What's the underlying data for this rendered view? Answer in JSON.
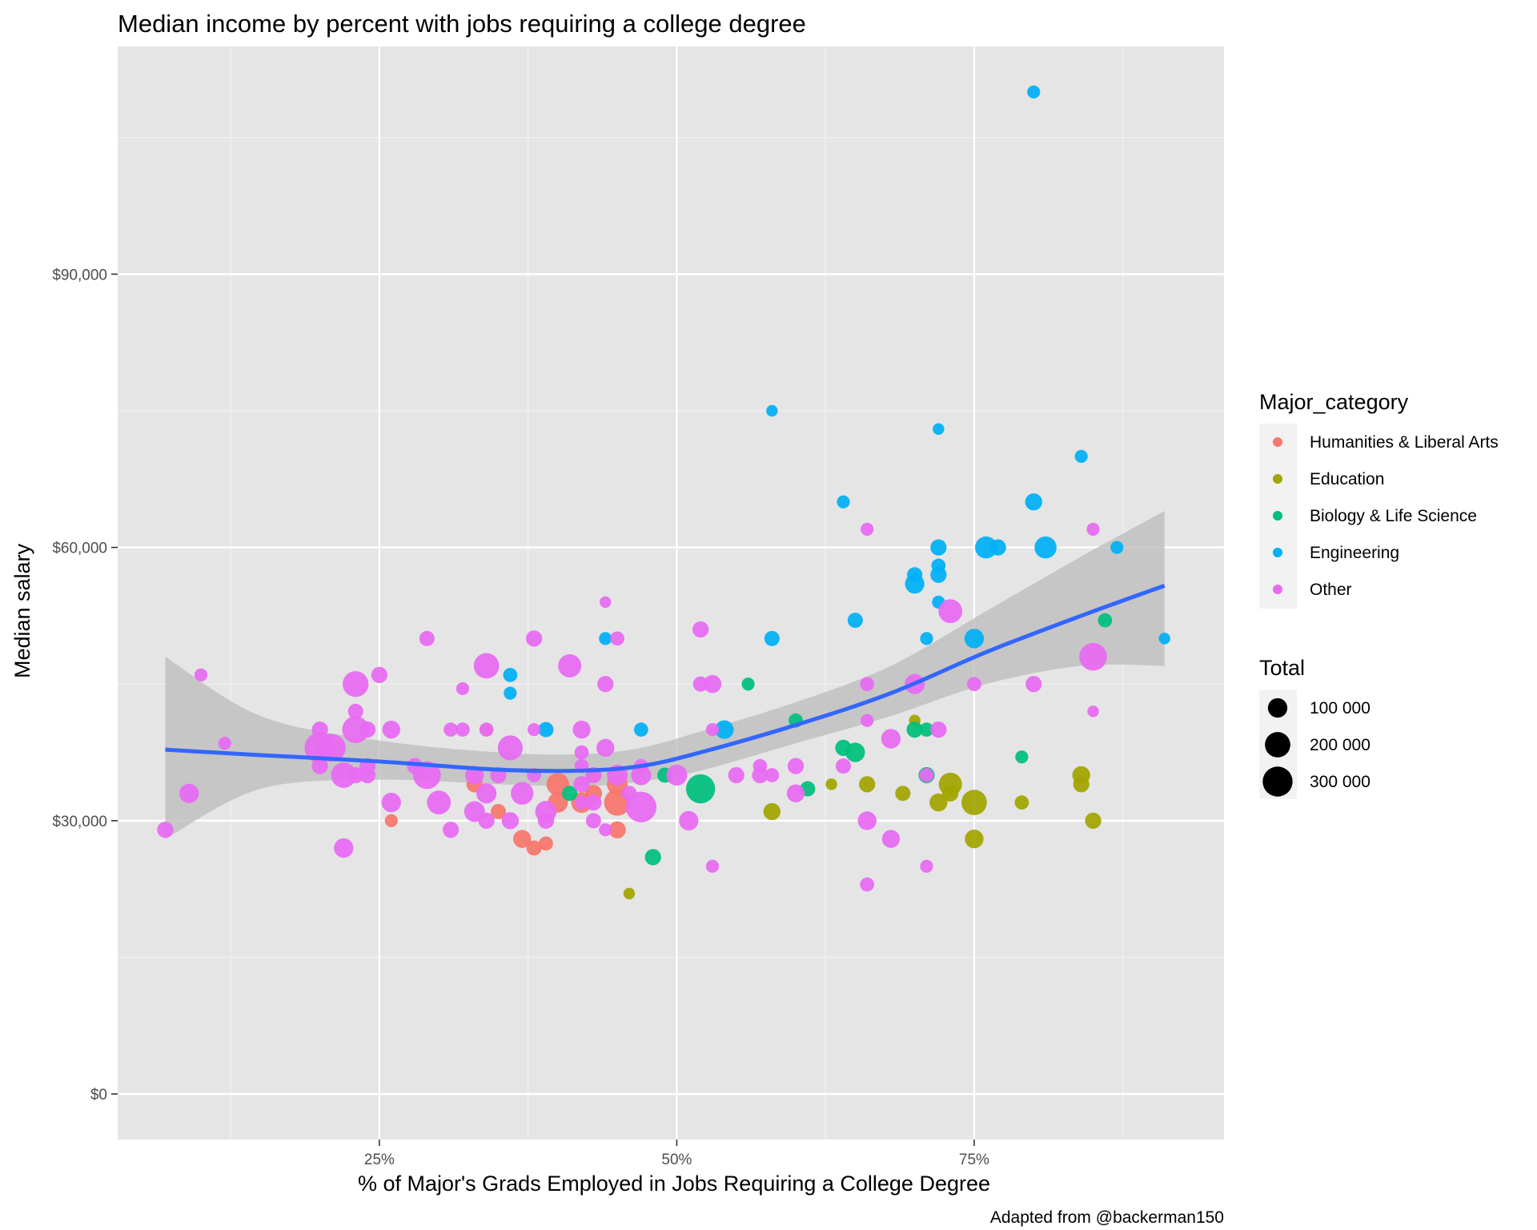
{
  "chart_data": {
    "type": "scatter",
    "title": "Median income by percent with jobs requiring a college degree",
    "xlabel": "% of Major's Grads Employed in Jobs Requiring a College Degree",
    "ylabel": "Median salary",
    "caption": "Adapted from @backerman150",
    "xlim": [
      0.03,
      0.96
    ],
    "ylim": [
      -5000,
      115000
    ],
    "x_ticks": [
      {
        "value": 0.25,
        "label": "25%"
      },
      {
        "value": 0.5,
        "label": "50%"
      },
      {
        "value": 0.75,
        "label": "75%"
      }
    ],
    "x_minor": [
      0.125,
      0.375,
      0.625,
      0.875
    ],
    "y_ticks": [
      {
        "value": 0,
        "label": "$0"
      },
      {
        "value": 30000,
        "label": "$30,000"
      },
      {
        "value": 60000,
        "label": "$60,000"
      },
      {
        "value": 90000,
        "label": "$90,000"
      }
    ],
    "y_minor": [
      15000,
      45000,
      75000,
      105000
    ],
    "grid": true,
    "legend_placement": "right",
    "colors": {
      "panel": "#E5E5E5",
      "gridline": "#FFFFFF",
      "smooth_line": "#3366FF",
      "ribbon": "#BEBEBE"
    },
    "color_legend": {
      "title": "Major_category",
      "entries": [
        {
          "label": "Humanities & Liberal Arts",
          "color": "#F8766D"
        },
        {
          "label": "Education",
          "color": "#A3A500"
        },
        {
          "label": "Biology & Life Science",
          "color": "#00BF7D"
        },
        {
          "label": "Engineering",
          "color": "#00B0F6"
        },
        {
          "label": "Other",
          "color": "#E76BF3"
        }
      ]
    },
    "size_legend": {
      "title": "Total",
      "entries": [
        {
          "label": "100 000",
          "value": 100000
        },
        {
          "label": "200 000",
          "value": 200000
        },
        {
          "label": "300 000",
          "value": 300000
        }
      ]
    },
    "smooth": {
      "x": [
        0.07,
        0.15,
        0.25,
        0.35,
        0.42,
        0.47,
        0.52,
        0.6,
        0.68,
        0.76,
        0.84,
        0.91
      ],
      "y": [
        37800,
        37200,
        36500,
        35600,
        35500,
        36000,
        37500,
        40500,
        44000,
        48500,
        52500,
        55800
      ],
      "ymin": [
        28000,
        33500,
        34500,
        34000,
        33800,
        34300,
        35500,
        38500,
        41500,
        45000,
        47000,
        47000
      ],
      "ymax": [
        48000,
        41500,
        38800,
        37500,
        37300,
        38000,
        39800,
        43000,
        47000,
        53000,
        59000,
        64000
      ]
    },
    "series": [
      {
        "name": "Humanities & Liberal Arts",
        "color": "#F8766D",
        "points": [
          {
            "x": 0.26,
            "y": 30000,
            "total": 30000
          },
          {
            "x": 0.33,
            "y": 34000,
            "total": 60000
          },
          {
            "x": 0.34,
            "y": 40000,
            "total": 30000
          },
          {
            "x": 0.35,
            "y": 31000,
            "total": 50000
          },
          {
            "x": 0.37,
            "y": 28000,
            "total": 80000
          },
          {
            "x": 0.38,
            "y": 27000,
            "total": 50000
          },
          {
            "x": 0.39,
            "y": 27500,
            "total": 40000
          },
          {
            "x": 0.4,
            "y": 34000,
            "total": 150000
          },
          {
            "x": 0.4,
            "y": 32000,
            "total": 110000
          },
          {
            "x": 0.42,
            "y": 32000,
            "total": 120000
          },
          {
            "x": 0.43,
            "y": 33000,
            "total": 70000
          },
          {
            "x": 0.45,
            "y": 32000,
            "total": 220000
          },
          {
            "x": 0.45,
            "y": 29000,
            "total": 70000
          },
          {
            "x": 0.45,
            "y": 34000,
            "total": 120000
          },
          {
            "x": 0.43,
            "y": 35000,
            "total": 50000
          }
        ]
      },
      {
        "name": "Education",
        "color": "#A3A500",
        "points": [
          {
            "x": 0.46,
            "y": 22000,
            "total": 20000
          },
          {
            "x": 0.58,
            "y": 31000,
            "total": 70000
          },
          {
            "x": 0.63,
            "y": 34000,
            "total": 20000
          },
          {
            "x": 0.66,
            "y": 34000,
            "total": 60000
          },
          {
            "x": 0.69,
            "y": 33000,
            "total": 50000
          },
          {
            "x": 0.7,
            "y": 41000,
            "total": 20000
          },
          {
            "x": 0.72,
            "y": 32000,
            "total": 80000
          },
          {
            "x": 0.73,
            "y": 34000,
            "total": 160000
          },
          {
            "x": 0.73,
            "y": 33000,
            "total": 60000
          },
          {
            "x": 0.75,
            "y": 32000,
            "total": 200000
          },
          {
            "x": 0.75,
            "y": 28000,
            "total": 90000
          },
          {
            "x": 0.79,
            "y": 32000,
            "total": 40000
          },
          {
            "x": 0.84,
            "y": 35000,
            "total": 80000
          },
          {
            "x": 0.84,
            "y": 34000,
            "total": 60000
          },
          {
            "x": 0.85,
            "y": 30000,
            "total": 60000
          }
        ]
      },
      {
        "name": "Biology & Life Science",
        "color": "#00BF7D",
        "points": [
          {
            "x": 0.41,
            "y": 33000,
            "total": 50000
          },
          {
            "x": 0.48,
            "y": 26000,
            "total": 60000
          },
          {
            "x": 0.49,
            "y": 35000,
            "total": 50000
          },
          {
            "x": 0.52,
            "y": 33500,
            "total": 280000
          },
          {
            "x": 0.56,
            "y": 45000,
            "total": 30000
          },
          {
            "x": 0.6,
            "y": 41000,
            "total": 40000
          },
          {
            "x": 0.61,
            "y": 33500,
            "total": 50000
          },
          {
            "x": 0.64,
            "y": 38000,
            "total": 60000
          },
          {
            "x": 0.65,
            "y": 37500,
            "total": 100000
          },
          {
            "x": 0.7,
            "y": 40000,
            "total": 60000
          },
          {
            "x": 0.71,
            "y": 35000,
            "total": 60000
          },
          {
            "x": 0.71,
            "y": 40000,
            "total": 40000
          },
          {
            "x": 0.79,
            "y": 37000,
            "total": 30000
          },
          {
            "x": 0.86,
            "y": 52000,
            "total": 40000
          }
        ]
      },
      {
        "name": "Engineering",
        "color": "#00B0F6",
        "points": [
          {
            "x": 0.36,
            "y": 46000,
            "total": 40000
          },
          {
            "x": 0.36,
            "y": 44000,
            "total": 30000
          },
          {
            "x": 0.39,
            "y": 40000,
            "total": 50000
          },
          {
            "x": 0.44,
            "y": 50000,
            "total": 30000
          },
          {
            "x": 0.47,
            "y": 40000,
            "total": 40000
          },
          {
            "x": 0.54,
            "y": 40000,
            "total": 90000
          },
          {
            "x": 0.58,
            "y": 75000,
            "total": 20000
          },
          {
            "x": 0.58,
            "y": 50000,
            "total": 50000
          },
          {
            "x": 0.64,
            "y": 65000,
            "total": 30000
          },
          {
            "x": 0.65,
            "y": 52000,
            "total": 50000
          },
          {
            "x": 0.7,
            "y": 57000,
            "total": 50000
          },
          {
            "x": 0.7,
            "y": 56000,
            "total": 100000
          },
          {
            "x": 0.71,
            "y": 50000,
            "total": 30000
          },
          {
            "x": 0.72,
            "y": 73000,
            "total": 20000
          },
          {
            "x": 0.72,
            "y": 58000,
            "total": 40000
          },
          {
            "x": 0.72,
            "y": 57000,
            "total": 60000
          },
          {
            "x": 0.72,
            "y": 54000,
            "total": 30000
          },
          {
            "x": 0.72,
            "y": 60000,
            "total": 60000
          },
          {
            "x": 0.75,
            "y": 50000,
            "total": 100000
          },
          {
            "x": 0.76,
            "y": 60000,
            "total": 140000
          },
          {
            "x": 0.77,
            "y": 60000,
            "total": 60000
          },
          {
            "x": 0.8,
            "y": 110000,
            "total": 30000
          },
          {
            "x": 0.8,
            "y": 65000,
            "total": 70000
          },
          {
            "x": 0.81,
            "y": 60000,
            "total": 140000
          },
          {
            "x": 0.84,
            "y": 70000,
            "total": 30000
          },
          {
            "x": 0.87,
            "y": 60000,
            "total": 30000
          },
          {
            "x": 0.91,
            "y": 50000,
            "total": 20000
          }
        ]
      },
      {
        "name": "Other",
        "color": "#E76BF3",
        "points": [
          {
            "x": 0.07,
            "y": 29000,
            "total": 60000
          },
          {
            "x": 0.09,
            "y": 33000,
            "total": 100000
          },
          {
            "x": 0.1,
            "y": 46000,
            "total": 30000
          },
          {
            "x": 0.12,
            "y": 38500,
            "total": 30000
          },
          {
            "x": 0.2,
            "y": 38000,
            "total": 320000
          },
          {
            "x": 0.2,
            "y": 40000,
            "total": 60000
          },
          {
            "x": 0.2,
            "y": 36000,
            "total": 60000
          },
          {
            "x": 0.21,
            "y": 38000,
            "total": 250000
          },
          {
            "x": 0.22,
            "y": 35000,
            "total": 200000
          },
          {
            "x": 0.22,
            "y": 27000,
            "total": 100000
          },
          {
            "x": 0.23,
            "y": 45000,
            "total": 210000
          },
          {
            "x": 0.23,
            "y": 40000,
            "total": 230000
          },
          {
            "x": 0.23,
            "y": 42000,
            "total": 50000
          },
          {
            "x": 0.23,
            "y": 35000,
            "total": 60000
          },
          {
            "x": 0.24,
            "y": 36000,
            "total": 60000
          },
          {
            "x": 0.24,
            "y": 40000,
            "total": 60000
          },
          {
            "x": 0.24,
            "y": 35000,
            "total": 60000
          },
          {
            "x": 0.25,
            "y": 46000,
            "total": 60000
          },
          {
            "x": 0.26,
            "y": 40000,
            "total": 80000
          },
          {
            "x": 0.26,
            "y": 32000,
            "total": 100000
          },
          {
            "x": 0.28,
            "y": 36000,
            "total": 60000
          },
          {
            "x": 0.29,
            "y": 50000,
            "total": 50000
          },
          {
            "x": 0.29,
            "y": 35000,
            "total": 250000
          },
          {
            "x": 0.3,
            "y": 32000,
            "total": 170000
          },
          {
            "x": 0.31,
            "y": 40000,
            "total": 40000
          },
          {
            "x": 0.31,
            "y": 29000,
            "total": 60000
          },
          {
            "x": 0.32,
            "y": 44500,
            "total": 30000
          },
          {
            "x": 0.32,
            "y": 40000,
            "total": 40000
          },
          {
            "x": 0.33,
            "y": 31000,
            "total": 120000
          },
          {
            "x": 0.33,
            "y": 35000,
            "total": 90000
          },
          {
            "x": 0.34,
            "y": 47000,
            "total": 200000
          },
          {
            "x": 0.34,
            "y": 33000,
            "total": 110000
          },
          {
            "x": 0.34,
            "y": 30000,
            "total": 60000
          },
          {
            "x": 0.34,
            "y": 40000,
            "total": 40000
          },
          {
            "x": 0.35,
            "y": 35000,
            "total": 60000
          },
          {
            "x": 0.36,
            "y": 38000,
            "total": 190000
          },
          {
            "x": 0.36,
            "y": 30000,
            "total": 70000
          },
          {
            "x": 0.37,
            "y": 33000,
            "total": 150000
          },
          {
            "x": 0.38,
            "y": 40000,
            "total": 30000
          },
          {
            "x": 0.38,
            "y": 50000,
            "total": 60000
          },
          {
            "x": 0.38,
            "y": 35000,
            "total": 40000
          },
          {
            "x": 0.39,
            "y": 31000,
            "total": 130000
          },
          {
            "x": 0.39,
            "y": 30000,
            "total": 60000
          },
          {
            "x": 0.41,
            "y": 47000,
            "total": 160000
          },
          {
            "x": 0.42,
            "y": 40000,
            "total": 80000
          },
          {
            "x": 0.42,
            "y": 34000,
            "total": 60000
          },
          {
            "x": 0.42,
            "y": 37500,
            "total": 40000
          },
          {
            "x": 0.42,
            "y": 36000,
            "total": 40000
          },
          {
            "x": 0.42,
            "y": 32000,
            "total": 40000
          },
          {
            "x": 0.43,
            "y": 30000,
            "total": 50000
          },
          {
            "x": 0.43,
            "y": 35000,
            "total": 60000
          },
          {
            "x": 0.43,
            "y": 32000,
            "total": 60000
          },
          {
            "x": 0.44,
            "y": 54000,
            "total": 20000
          },
          {
            "x": 0.44,
            "y": 45000,
            "total": 60000
          },
          {
            "x": 0.44,
            "y": 38000,
            "total": 80000
          },
          {
            "x": 0.44,
            "y": 29000,
            "total": 30000
          },
          {
            "x": 0.45,
            "y": 50000,
            "total": 40000
          },
          {
            "x": 0.45,
            "y": 35000,
            "total": 120000
          },
          {
            "x": 0.46,
            "y": 33000,
            "total": 50000
          },
          {
            "x": 0.47,
            "y": 31500,
            "total": 320000
          },
          {
            "x": 0.47,
            "y": 35000,
            "total": 110000
          },
          {
            "x": 0.47,
            "y": 36000,
            "total": 40000
          },
          {
            "x": 0.5,
            "y": 35000,
            "total": 120000
          },
          {
            "x": 0.51,
            "y": 30000,
            "total": 100000
          },
          {
            "x": 0.52,
            "y": 45000,
            "total": 50000
          },
          {
            "x": 0.52,
            "y": 51000,
            "total": 60000
          },
          {
            "x": 0.53,
            "y": 45000,
            "total": 80000
          },
          {
            "x": 0.53,
            "y": 40000,
            "total": 30000
          },
          {
            "x": 0.53,
            "y": 25000,
            "total": 30000
          },
          {
            "x": 0.55,
            "y": 35000,
            "total": 60000
          },
          {
            "x": 0.57,
            "y": 36000,
            "total": 40000
          },
          {
            "x": 0.57,
            "y": 35000,
            "total": 60000
          },
          {
            "x": 0.58,
            "y": 35000,
            "total": 40000
          },
          {
            "x": 0.6,
            "y": 36000,
            "total": 60000
          },
          {
            "x": 0.6,
            "y": 33000,
            "total": 80000
          },
          {
            "x": 0.64,
            "y": 36000,
            "total": 50000
          },
          {
            "x": 0.66,
            "y": 45000,
            "total": 40000
          },
          {
            "x": 0.66,
            "y": 30000,
            "total": 90000
          },
          {
            "x": 0.66,
            "y": 23000,
            "total": 40000
          },
          {
            "x": 0.66,
            "y": 62000,
            "total": 30000
          },
          {
            "x": 0.66,
            "y": 41000,
            "total": 30000
          },
          {
            "x": 0.68,
            "y": 39000,
            "total": 100000
          },
          {
            "x": 0.68,
            "y": 28000,
            "total": 80000
          },
          {
            "x": 0.7,
            "y": 45000,
            "total": 110000
          },
          {
            "x": 0.71,
            "y": 25000,
            "total": 30000
          },
          {
            "x": 0.71,
            "y": 35000,
            "total": 40000
          },
          {
            "x": 0.72,
            "y": 40000,
            "total": 60000
          },
          {
            "x": 0.73,
            "y": 53000,
            "total": 170000
          },
          {
            "x": 0.75,
            "y": 45000,
            "total": 40000
          },
          {
            "x": 0.8,
            "y": 45000,
            "total": 60000
          },
          {
            "x": 0.85,
            "y": 62000,
            "total": 30000
          },
          {
            "x": 0.85,
            "y": 48000,
            "total": 250000
          },
          {
            "x": 0.85,
            "y": 42000,
            "total": 20000
          }
        ]
      }
    ]
  }
}
